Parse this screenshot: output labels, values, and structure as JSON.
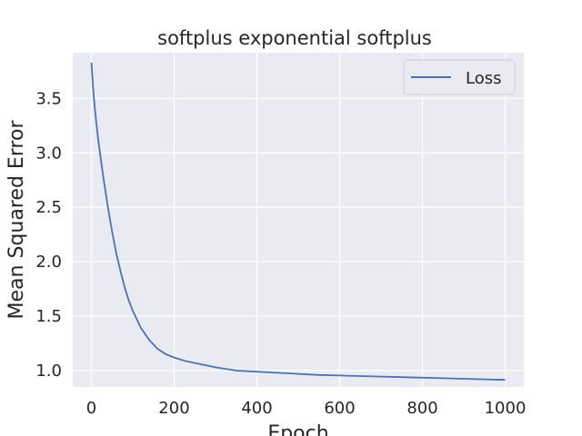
{
  "chart_data": {
    "type": "line",
    "title": "softplus exponential softplus",
    "xlabel": "Epoch",
    "ylabel": "Mean Squared Error",
    "xlim": [
      -45,
      1045
    ],
    "ylim": [
      0.85,
      3.92
    ],
    "xticks": [
      0,
      200,
      400,
      600,
      800,
      1000
    ],
    "yticks": [
      1.0,
      1.5,
      2.0,
      2.5,
      3.0,
      3.5
    ],
    "xtick_labels": [
      "0",
      "200",
      "400",
      "600",
      "800",
      "1000"
    ],
    "ytick_labels": [
      "1.0",
      "1.5",
      "2.0",
      "2.5",
      "3.0",
      "3.5"
    ],
    "grid": true,
    "legend_position": "top-right",
    "series": [
      {
        "name": "Loss",
        "color": "#4c72b0",
        "x": [
          0,
          5,
          10,
          15,
          20,
          25,
          30,
          40,
          50,
          60,
          70,
          80,
          90,
          100,
          120,
          140,
          160,
          180,
          200,
          225,
          250,
          275,
          300,
          350,
          400,
          450,
          500,
          550,
          600,
          650,
          700,
          750,
          800,
          850,
          900,
          950,
          1000
        ],
        "values": [
          3.83,
          3.55,
          3.35,
          3.17,
          3.02,
          2.88,
          2.75,
          2.5,
          2.28,
          2.08,
          1.92,
          1.77,
          1.65,
          1.55,
          1.39,
          1.28,
          1.2,
          1.15,
          1.12,
          1.09,
          1.07,
          1.05,
          1.03,
          1.0,
          0.99,
          0.98,
          0.97,
          0.96,
          0.955,
          0.95,
          0.945,
          0.94,
          0.935,
          0.93,
          0.925,
          0.92,
          0.915
        ]
      }
    ]
  }
}
